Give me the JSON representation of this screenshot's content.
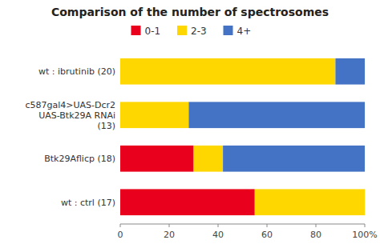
{
  "chart_data": {
    "type": "bar",
    "orientation": "horizontal",
    "stacked": true,
    "title": "Comparison of the number of spectrosomes",
    "categories": [
      "wt : ibrutinib (20)",
      "c587gal4>UAS-Dcr2\nUAS-Btk29A RNAi\n(13)",
      "Btk29Aflicp (18)",
      "wt : ctrl (17)"
    ],
    "series": [
      {
        "name": "0-1",
        "color": "#e8001c",
        "values": [
          0,
          0,
          30,
          55
        ]
      },
      {
        "name": "2-3",
        "color": "#ffd700",
        "values": [
          88,
          28,
          12,
          45
        ]
      },
      {
        "name": "4+",
        "color": "#4472c4",
        "values": [
          12,
          72,
          58,
          0
        ]
      }
    ],
    "xlim": [
      0,
      100
    ],
    "xticks": [
      0,
      20,
      40,
      60,
      80,
      {
        "value": 100,
        "label": "100%"
      }
    ],
    "grid": false,
    "legend": "top"
  }
}
